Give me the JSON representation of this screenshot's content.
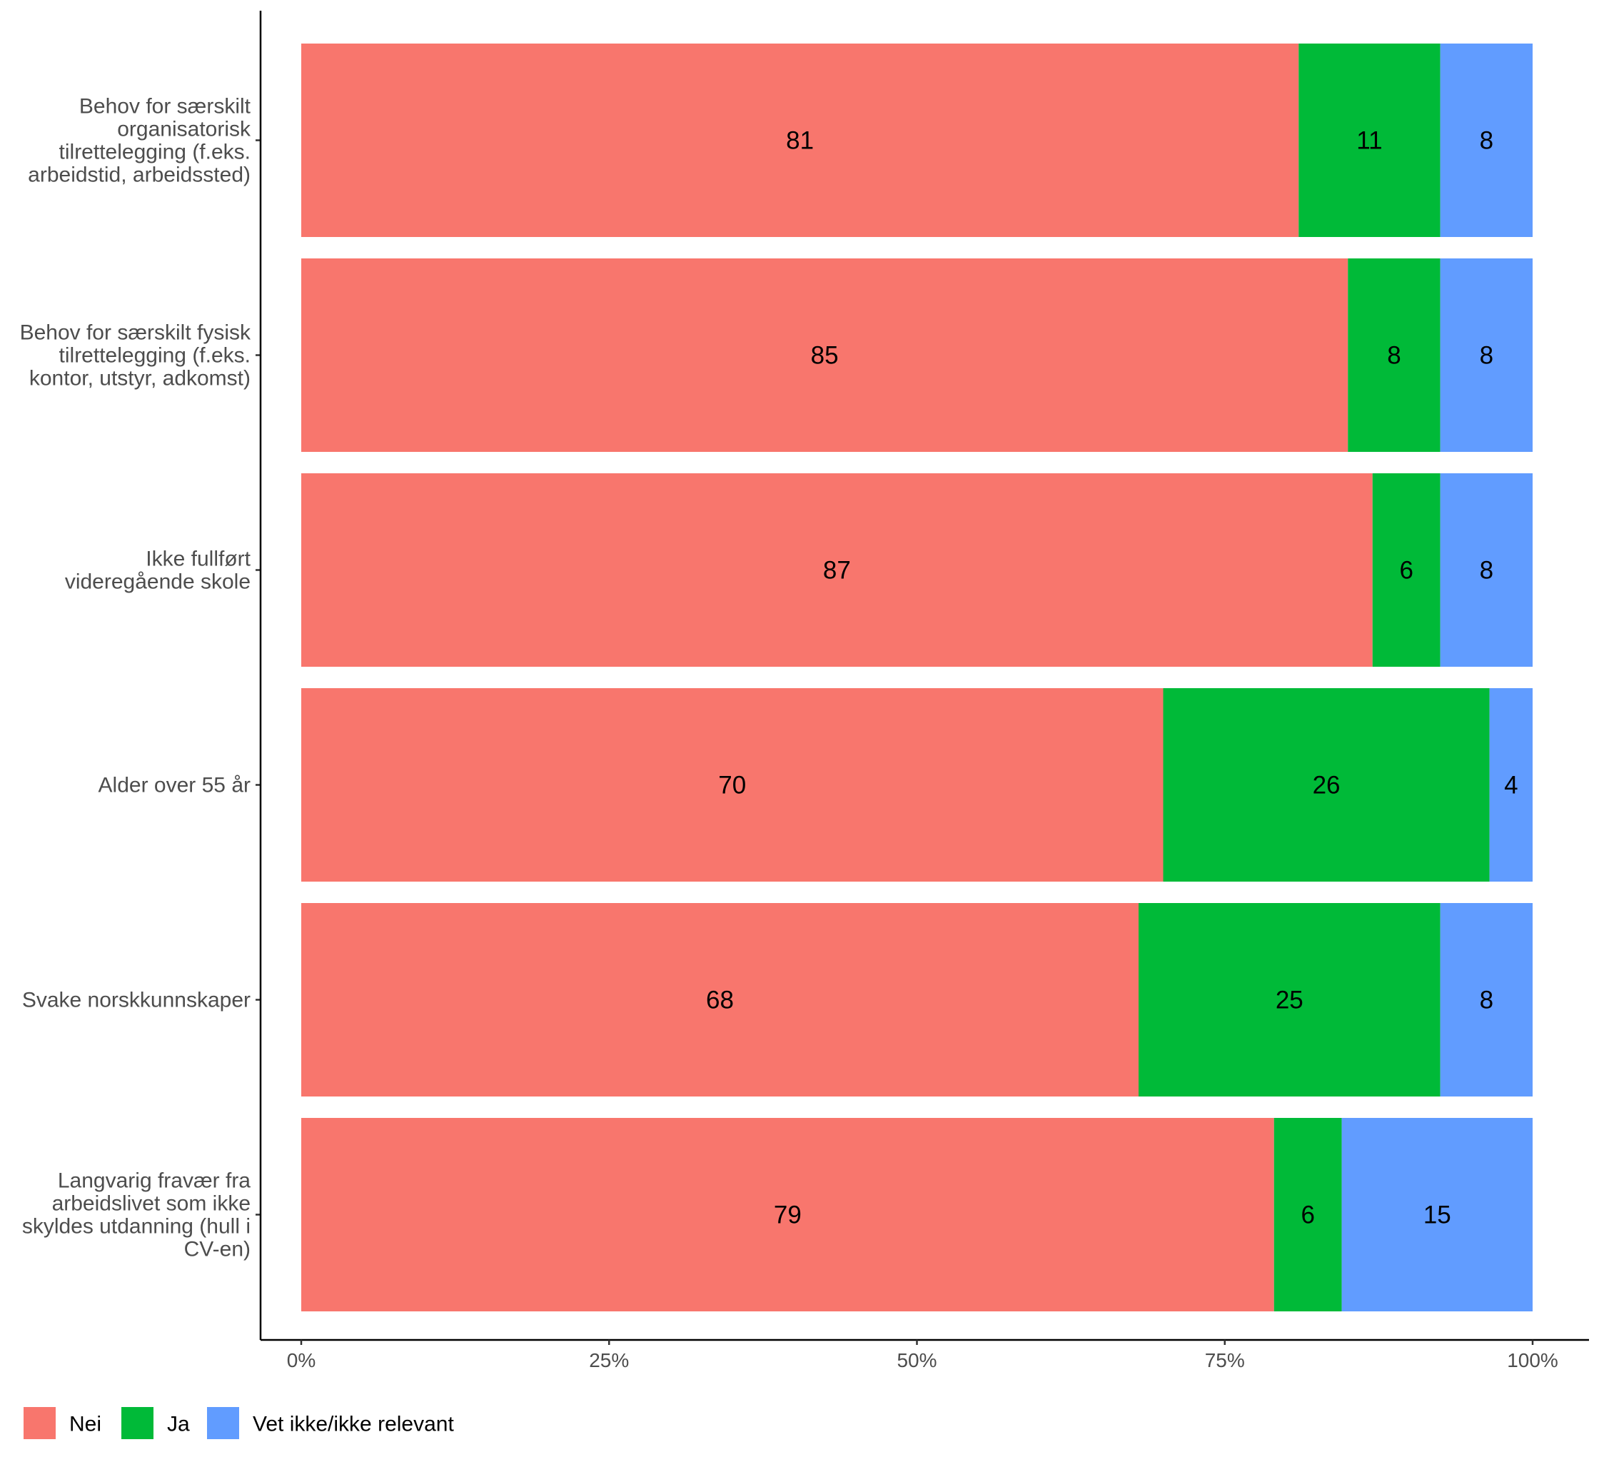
{
  "chart_data": {
    "type": "bar",
    "orientation": "horizontal",
    "stacked": true,
    "categories": [
      [
        "Behov for særskilt",
        "organisatorisk",
        "tilrettelegging (f.eks.",
        "arbeidstid, arbeidssted)"
      ],
      [
        "Behov for særskilt fysisk",
        "tilrettelegging (f.eks.",
        "kontor, utstyr, adkomst)"
      ],
      [
        "Ikke fullført",
        "videregående skole"
      ],
      [
        "Alder over 55 år"
      ],
      [
        "Svake norskkunnskaper"
      ],
      [
        "Langvarig fravær fra",
        "arbeidslivet som ikke",
        "skyldes utdanning (hull i",
        "CV-en)"
      ]
    ],
    "series": [
      {
        "name": "Nei",
        "color": "#F8766D",
        "values": [
          81,
          85,
          87,
          70,
          68,
          79
        ],
        "labels": [
          "81",
          "85",
          "87",
          "70",
          "68",
          "79"
        ]
      },
      {
        "name": "Ja",
        "color": "#00BA38",
        "values": [
          11.5,
          7.5,
          5.5,
          26.5,
          24.5,
          5.5
        ],
        "labels": [
          "11",
          "8",
          "6",
          "26",
          "25",
          "6"
        ]
      },
      {
        "name": "Vet ikke/ikke relevant",
        "color": "#619CFF",
        "values": [
          7.5,
          7.5,
          7.5,
          3.5,
          7.5,
          15.5
        ],
        "labels": [
          "8",
          "8",
          "8",
          "4",
          "8",
          "15"
        ]
      }
    ],
    "x_ticks": [
      "0%",
      "25%",
      "50%",
      "75%",
      "100%"
    ],
    "xlim": [
      0,
      100
    ],
    "title": "",
    "xlabel": "",
    "ylabel": "",
    "grid": false,
    "legend_position": "bottom-left"
  }
}
